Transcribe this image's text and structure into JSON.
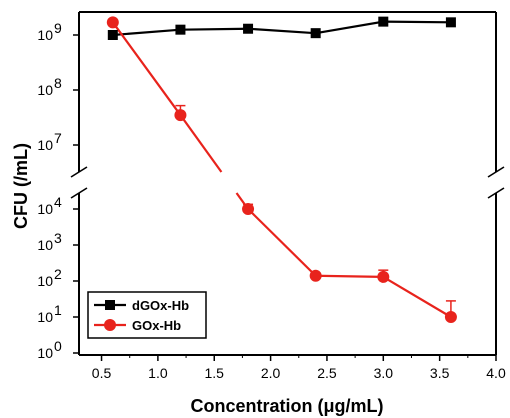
{
  "chart_data": {
    "type": "line",
    "xlabel": "Concentration (μg/mL)",
    "ylabel": "CFU (/mL)",
    "xlim": [
      0.3,
      4.0
    ],
    "x_ticks": [
      {
        "value": 0.5,
        "label": "0.5"
      },
      {
        "value": 1.0,
        "label": "1.0"
      },
      {
        "value": 1.5,
        "label": "1.5"
      },
      {
        "value": 2.0,
        "label": "2.0"
      },
      {
        "value": 2.5,
        "label": "2.5"
      },
      {
        "value": 3.0,
        "label": "3.0"
      },
      {
        "value": 3.5,
        "label": "3.5"
      },
      {
        "value": 4.0,
        "label": "4.0"
      }
    ],
    "y_scale": "log",
    "y_axis_break": [
      10000,
      1000000
    ],
    "y_ticks": [
      {
        "exp": 0,
        "base": "10",
        "sup": "0"
      },
      {
        "exp": 1,
        "base": "10",
        "sup": "1"
      },
      {
        "exp": 2,
        "base": "10",
        "sup": "2"
      },
      {
        "exp": 3,
        "base": "10",
        "sup": "3"
      },
      {
        "exp": 4,
        "base": "10",
        "sup": "4"
      },
      {
        "exp": 7,
        "base": "10",
        "sup": "7"
      },
      {
        "exp": 8,
        "base": "10",
        "sup": "8"
      },
      {
        "exp": 9,
        "base": "10",
        "sup": "9"
      }
    ],
    "legend_position": "bottom-left",
    "series": [
      {
        "name": "dGOx-Hb",
        "color": "#000000",
        "marker": "square",
        "x": [
          0.6,
          1.2,
          1.8,
          2.4,
          3.0,
          3.6
        ],
        "y": [
          1000000000.0,
          1250000000.0,
          1300000000.0,
          1080000000.0,
          1750000000.0,
          1700000000.0
        ],
        "error": [
          0,
          0,
          0,
          0,
          0,
          0
        ]
      },
      {
        "name": "GOx-Hb",
        "color": "#e8231c",
        "marker": "circle",
        "x": [
          0.6,
          1.2,
          1.8,
          2.4,
          3.0,
          3.6
        ],
        "y": [
          1700000000.0,
          35000000.0,
          10000,
          140,
          130,
          10
        ],
        "error": [
          0,
          17000000.0,
          3500,
          0,
          70,
          18
        ]
      }
    ]
  }
}
